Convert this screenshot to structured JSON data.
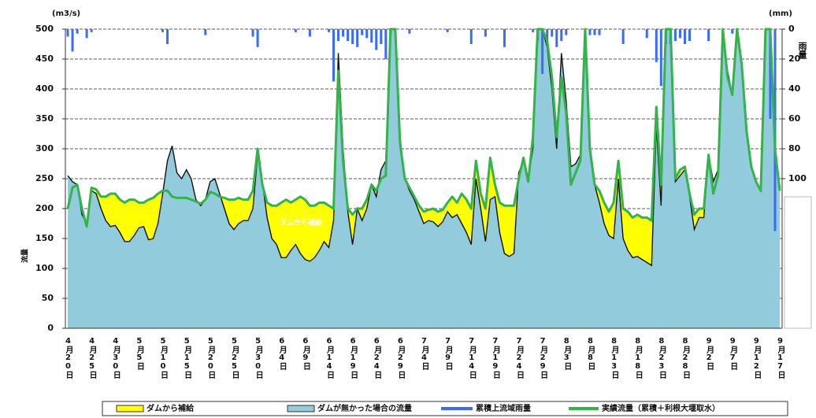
{
  "chart_data": {
    "type": "area",
    "units_left": "(m3/s)",
    "units_right": "(mm)",
    "ylabel": "流量",
    "y2label": "雨量",
    "annotations": [
      {
        "text": "ダムから補給"
      }
    ],
    "supply": {
      "name": "ダムから補給",
      "color": "#ffff00"
    },
    "categories": [
      "4月20日",
      null,
      null,
      null,
      null,
      "4月25日",
      null,
      null,
      null,
      null,
      "4月30日",
      null,
      null,
      null,
      null,
      "5月5日",
      null,
      null,
      null,
      null,
      "5月10日",
      null,
      null,
      null,
      null,
      "5月15日",
      null,
      null,
      null,
      null,
      "5月20日",
      null,
      null,
      null,
      null,
      "5月25日",
      null,
      null,
      null,
      null,
      "5月30日",
      null,
      null,
      null,
      null,
      "6月4日",
      null,
      null,
      null,
      null,
      "6月9日",
      null,
      null,
      null,
      null,
      "6月14日",
      null,
      null,
      null,
      null,
      "6月19日",
      null,
      null,
      null,
      null,
      "6月24日",
      null,
      null,
      null,
      null,
      "6月29日",
      null,
      null,
      null,
      null,
      "7月4日",
      null,
      null,
      null,
      null,
      "7月9日",
      null,
      null,
      null,
      null,
      "7月14日",
      null,
      null,
      null,
      null,
      "7月19日",
      null,
      null,
      null,
      null,
      "7月24日",
      null,
      null,
      null,
      null,
      "7月29日",
      null,
      null,
      null,
      null,
      "8月3日",
      null,
      null,
      null,
      null,
      "8月8日",
      null,
      null,
      null,
      null,
      "8月13日",
      null,
      null,
      null,
      null,
      "8月18日",
      null,
      null,
      null,
      null,
      "8月23日",
      null,
      null,
      null,
      null,
      "8月28日",
      null,
      null,
      null,
      null,
      "9月2日",
      null,
      null,
      null,
      null,
      "9月7日",
      null,
      null,
      null,
      null,
      "9月12日",
      null,
      null,
      null,
      null,
      "9月17日"
    ],
    "series": [
      {
        "name": "ダムが無かった場合の流量",
        "type": "area",
        "color": "#92cbdc",
        "stroke": "#111111",
        "values": [
          255,
          245,
          240,
          190,
          175,
          230,
          225,
          200,
          180,
          170,
          172,
          160,
          145,
          145,
          155,
          168,
          170,
          148,
          150,
          175,
          225,
          280,
          305,
          260,
          250,
          265,
          250,
          215,
          205,
          215,
          245,
          250,
          225,
          200,
          175,
          165,
          175,
          180,
          180,
          200,
          290,
          245,
          185,
          150,
          140,
          118,
          118,
          130,
          140,
          125,
          115,
          112,
          118,
          130,
          145,
          135,
          180,
          460,
          300,
          195,
          140,
          200,
          180,
          200,
          240,
          220,
          265,
          280,
          500,
          500,
          320,
          250,
          230,
          215,
          195,
          175,
          180,
          178,
          170,
          178,
          195,
          185,
          190,
          175,
          160,
          140,
          250,
          200,
          145,
          215,
          220,
          160,
          125,
          120,
          125,
          260,
          280,
          250,
          300,
          500,
          500,
          470,
          400,
          300,
          460,
          380,
          270,
          275,
          290,
          500,
          300,
          240,
          210,
          175,
          155,
          150,
          250,
          150,
          130,
          118,
          120,
          115,
          110,
          105,
          340,
          205,
          500,
          500,
          245,
          255,
          265,
          220,
          165,
          185,
          185,
          290,
          245,
          265,
          500,
          430,
          390,
          500,
          440,
          330,
          270,
          245,
          230,
          500,
          500,
          300,
          230
        ]
      },
      {
        "name": "累積上流域雨量",
        "type": "bar",
        "axis": "y2",
        "color": "#3a6cf4",
        "values": [
          5,
          15,
          3,
          0,
          6,
          2,
          0,
          0,
          0,
          0,
          0,
          0,
          0,
          0,
          0,
          0,
          0,
          0,
          0,
          0,
          2,
          10,
          0,
          0,
          0,
          0,
          0,
          0,
          0,
          4,
          0,
          0,
          0,
          0,
          0,
          0,
          0,
          0,
          0,
          5,
          12,
          0,
          0,
          0,
          0,
          0,
          0,
          0,
          2,
          0,
          0,
          5,
          0,
          0,
          0,
          2,
          35,
          8,
          5,
          8,
          10,
          12,
          4,
          6,
          9,
          14,
          10,
          20,
          3,
          0,
          0,
          0,
          3,
          0,
          0,
          0,
          0,
          0,
          0,
          0,
          2,
          0,
          0,
          0,
          0,
          10,
          0,
          0,
          5,
          0,
          0,
          0,
          12,
          0,
          0,
          0,
          0,
          0,
          2,
          8,
          30,
          10,
          5,
          12,
          8,
          4,
          0,
          0,
          0,
          0,
          4,
          4,
          4,
          0,
          0,
          0,
          0,
          10,
          0,
          0,
          0,
          0,
          6,
          0,
          22,
          38,
          10,
          10,
          8,
          6,
          10,
          8,
          0,
          0,
          0,
          8,
          0,
          0,
          0,
          0,
          3,
          5,
          0,
          0,
          0,
          0,
          0,
          2,
          60,
          135,
          0
        ]
      },
      {
        "name": "実績流量（累積＋利根大堰取水）",
        "type": "line",
        "color": "#33b34a",
        "values": [
          200,
          235,
          240,
          200,
          170,
          235,
          232,
          220,
          220,
          225,
          225,
          215,
          210,
          215,
          215,
          210,
          210,
          215,
          218,
          225,
          230,
          230,
          220,
          218,
          218,
          218,
          215,
          212,
          208,
          215,
          228,
          225,
          220,
          218,
          215,
          215,
          218,
          215,
          215,
          230,
          300,
          240,
          210,
          205,
          205,
          210,
          215,
          210,
          215,
          220,
          215,
          205,
          205,
          210,
          210,
          205,
          200,
          430,
          280,
          200,
          190,
          200,
          200,
          215,
          240,
          230,
          250,
          255,
          500,
          500,
          310,
          250,
          235,
          220,
          205,
          195,
          198,
          200,
          195,
          198,
          210,
          220,
          210,
          225,
          215,
          200,
          280,
          225,
          200,
          285,
          240,
          210,
          205,
          205,
          205,
          250,
          285,
          245,
          320,
          500,
          500,
          480,
          420,
          320,
          420,
          360,
          240,
          260,
          280,
          500,
          300,
          240,
          230,
          210,
          195,
          210,
          280,
          200,
          195,
          185,
          190,
          185,
          185,
          180,
          370,
          240,
          500,
          500,
          250,
          265,
          270,
          225,
          190,
          200,
          200,
          290,
          225,
          255,
          500,
          420,
          390,
          500,
          440,
          330,
          270,
          245,
          230,
          500,
          500,
          300,
          230
        ]
      }
    ],
    "ylim": [
      0,
      500
    ],
    "yticks": [
      0,
      50,
      100,
      150,
      200,
      250,
      300,
      350,
      400,
      450,
      500
    ],
    "y2lim": [
      200,
      0
    ],
    "y2ticks": [
      0,
      20,
      40,
      60,
      80,
      100
    ],
    "grid": true
  }
}
